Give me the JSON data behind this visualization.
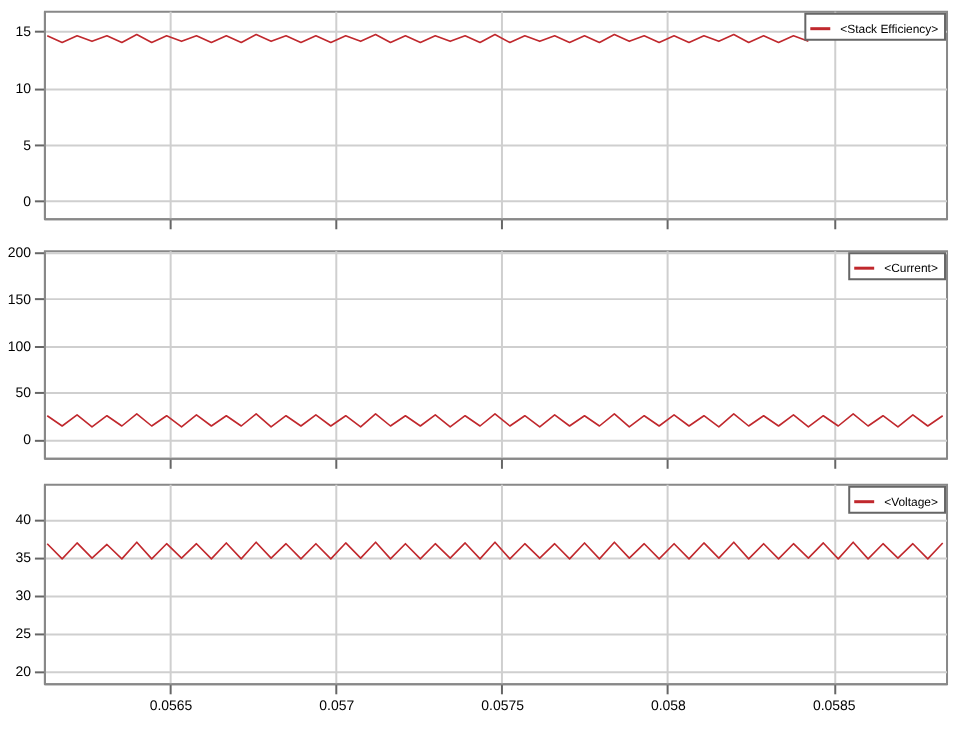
{
  "chart_data": [
    {
      "type": "line",
      "series": [
        {
          "name": "<Stack Efficiency>",
          "color": "#c0282d",
          "x": [
            0.05613,
            0.056175,
            0.05622,
            0.056265,
            0.05631,
            0.056355,
            0.0564,
            0.056445,
            0.05649,
            0.056535,
            0.05658,
            0.056625,
            0.05667,
            0.056715,
            0.05676,
            0.056805,
            0.05685,
            0.056895,
            0.05694,
            0.056985,
            0.05703,
            0.057075,
            0.05712,
            0.057165,
            0.05721,
            0.057255,
            0.0573,
            0.057345,
            0.05739,
            0.057435,
            0.05748,
            0.057525,
            0.05757,
            0.057615,
            0.05766,
            0.057705,
            0.05775,
            0.057795,
            0.05784,
            0.057885,
            0.05793,
            0.057975,
            0.05802,
            0.058065,
            0.05811,
            0.058155,
            0.0582,
            0.058245,
            0.05829,
            0.058335,
            0.05838,
            0.058425
          ],
          "values": [
            14.6,
            14.0,
            14.6,
            14.1,
            14.6,
            14.0,
            14.7,
            14.0,
            14.6,
            14.1,
            14.6,
            14.0,
            14.6,
            14.0,
            14.7,
            14.1,
            14.6,
            14.0,
            14.6,
            14.0,
            14.6,
            14.1,
            14.7,
            14.0,
            14.6,
            14.0,
            14.6,
            14.1,
            14.6,
            14.0,
            14.7,
            14.0,
            14.6,
            14.1,
            14.6,
            14.0,
            14.6,
            14.0,
            14.7,
            14.1,
            14.6,
            14.0,
            14.6,
            14.0,
            14.6,
            14.1,
            14.7,
            14.0,
            14.6,
            14.0,
            14.6,
            14.1
          ]
        }
      ],
      "xlim": [
        0.05612,
        0.05884
      ],
      "xticks": [
        0.0565,
        0.057,
        0.0575,
        0.058,
        0.0585
      ],
      "ylim": [
        -1.5,
        16.8
      ],
      "yticks": [
        0,
        5,
        10,
        15
      ],
      "grid": true,
      "legend": "top right",
      "tick_labels": "y"
    },
    {
      "type": "line",
      "x": [
        0.05613,
        0.056175,
        0.05622,
        0.056265,
        0.05631,
        0.056355,
        0.0564,
        0.056445,
        0.05649,
        0.056535,
        0.05658,
        0.056625,
        0.05667,
        0.056715,
        0.05676,
        0.056805,
        0.05685,
        0.056895,
        0.05694,
        0.056985,
        0.05703,
        0.057075,
        0.05712,
        0.057165,
        0.05721,
        0.057255,
        0.0573,
        0.057345,
        0.05739,
        0.057435,
        0.05748,
        0.057525,
        0.05757,
        0.057615,
        0.05766,
        0.057705,
        0.05775,
        0.057795,
        0.05784,
        0.057885,
        0.05793,
        0.057975,
        0.05802,
        0.058065,
        0.05811,
        0.058155,
        0.0582,
        0.058245,
        0.05829,
        0.058335,
        0.05838,
        0.058425,
        0.05847,
        0.058515,
        0.05856,
        0.058605,
        0.05865,
        0.058695,
        0.05874,
        0.058785,
        0.05883
      ],
      "series": [
        {
          "name": "<Current>",
          "color": "#c0282d",
          "values": [
            25,
            14,
            26,
            13,
            25,
            14,
            27,
            14,
            25,
            13,
            26,
            14,
            25,
            14,
            27,
            13,
            25,
            14,
            26,
            14,
            25,
            13,
            27,
            14,
            25,
            14,
            26,
            13,
            25,
            14,
            27,
            14,
            25,
            13,
            26,
            14,
            25,
            14,
            27,
            13,
            25,
            14,
            26,
            14,
            25,
            13,
            27,
            14,
            25,
            14,
            26,
            13,
            25,
            14,
            27,
            14,
            25,
            13,
            26,
            14,
            25
          ]
        }
      ],
      "xlim": [
        0.05612,
        0.05884
      ],
      "xticks": [
        0.0565,
        0.057,
        0.0575,
        0.058,
        0.0585
      ],
      "ylim": [
        -20,
        202
      ],
      "yticks": [
        0,
        50,
        100,
        150,
        200
      ],
      "grid": true,
      "legend": "top right",
      "tick_labels": "y"
    },
    {
      "type": "line",
      "x": [
        0.05613,
        0.056175,
        0.05622,
        0.056265,
        0.05631,
        0.056355,
        0.0564,
        0.056445,
        0.05649,
        0.056535,
        0.05658,
        0.056625,
        0.05667,
        0.056715,
        0.05676,
        0.056805,
        0.05685,
        0.056895,
        0.05694,
        0.056985,
        0.05703,
        0.057075,
        0.05712,
        0.057165,
        0.05721,
        0.057255,
        0.0573,
        0.057345,
        0.05739,
        0.057435,
        0.05748,
        0.057525,
        0.05757,
        0.057615,
        0.05766,
        0.057705,
        0.05775,
        0.057795,
        0.05784,
        0.057885,
        0.05793,
        0.057975,
        0.05802,
        0.058065,
        0.05811,
        0.058155,
        0.0582,
        0.058245,
        0.05829,
        0.058335,
        0.05838,
        0.058425,
        0.05847,
        0.058515,
        0.05856,
        0.058605,
        0.05865,
        0.058695,
        0.05874,
        0.058785,
        0.05883
      ],
      "series": [
        {
          "name": "<Voltage>",
          "color": "#c0282d",
          "values": [
            36.8,
            34.8,
            36.9,
            34.9,
            36.7,
            34.8,
            37.0,
            34.8,
            36.8,
            34.9,
            36.8,
            34.8,
            36.9,
            34.8,
            37.0,
            34.9,
            36.8,
            34.8,
            36.8,
            34.8,
            36.9,
            34.9,
            37.0,
            34.8,
            36.8,
            34.8,
            36.8,
            34.9,
            36.9,
            34.8,
            37.0,
            34.8,
            36.8,
            34.9,
            36.8,
            34.8,
            36.9,
            34.8,
            37.0,
            34.9,
            36.8,
            34.8,
            36.8,
            34.8,
            36.9,
            34.9,
            37.0,
            34.8,
            36.8,
            34.8,
            36.8,
            34.9,
            36.9,
            34.8,
            37.0,
            34.8,
            36.8,
            34.9,
            36.8,
            34.8,
            36.9
          ]
        }
      ],
      "xlim": [
        0.05612,
        0.05884
      ],
      "xticks": [
        0.0565,
        0.057,
        0.0575,
        0.058,
        0.0585
      ],
      "ylim": [
        18.4,
        44.7
      ],
      "yticks": [
        20,
        25,
        30,
        35,
        40
      ],
      "grid": true,
      "legend": "top right"
    }
  ]
}
